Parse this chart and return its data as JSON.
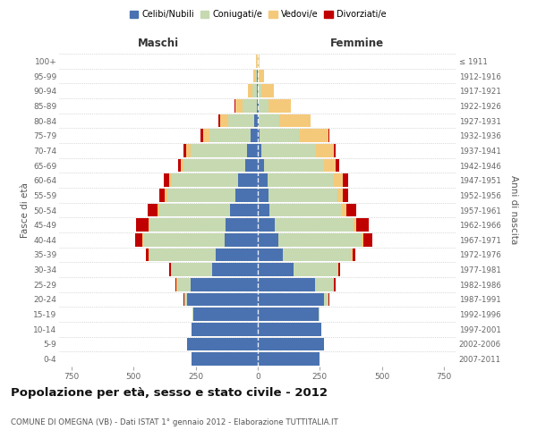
{
  "age_groups": [
    "0-4",
    "5-9",
    "10-14",
    "15-19",
    "20-24",
    "25-29",
    "30-34",
    "35-39",
    "40-44",
    "45-49",
    "50-54",
    "55-59",
    "60-64",
    "65-69",
    "70-74",
    "75-79",
    "80-84",
    "85-89",
    "90-94",
    "95-99",
    "100+"
  ],
  "birth_years": [
    "2007-2011",
    "2002-2006",
    "1997-2001",
    "1992-1996",
    "1987-1991",
    "1982-1986",
    "1977-1981",
    "1972-1976",
    "1967-1971",
    "1962-1966",
    "1957-1961",
    "1952-1956",
    "1947-1951",
    "1942-1946",
    "1937-1941",
    "1932-1936",
    "1927-1931",
    "1922-1926",
    "1917-1921",
    "1912-1916",
    "≤ 1911"
  ],
  "males": {
    "celibi": [
      265,
      285,
      265,
      260,
      285,
      270,
      185,
      170,
      135,
      130,
      110,
      90,
      80,
      50,
      45,
      28,
      13,
      5,
      2,
      2,
      1
    ],
    "coniugati": [
      0,
      0,
      0,
      3,
      12,
      55,
      160,
      265,
      325,
      305,
      285,
      275,
      265,
      248,
      225,
      168,
      105,
      55,
      18,
      7,
      2
    ],
    "vedovi": [
      0,
      0,
      0,
      0,
      0,
      2,
      3,
      3,
      5,
      5,
      8,
      8,
      12,
      12,
      18,
      25,
      35,
      30,
      18,
      8,
      3
    ],
    "divorziati": [
      0,
      0,
      0,
      0,
      2,
      5,
      8,
      12,
      28,
      50,
      42,
      22,
      22,
      12,
      12,
      8,
      4,
      2,
      1,
      0,
      0
    ]
  },
  "females": {
    "nubili": [
      250,
      265,
      255,
      245,
      265,
      230,
      145,
      100,
      82,
      68,
      48,
      42,
      38,
      25,
      16,
      8,
      4,
      2,
      1,
      1,
      0
    ],
    "coniugate": [
      0,
      0,
      0,
      5,
      18,
      75,
      175,
      275,
      335,
      318,
      292,
      278,
      268,
      240,
      218,
      162,
      82,
      40,
      13,
      4,
      2
    ],
    "vedove": [
      0,
      0,
      0,
      0,
      2,
      3,
      4,
      6,
      8,
      12,
      18,
      22,
      35,
      50,
      72,
      115,
      125,
      90,
      52,
      22,
      7
    ],
    "divorziate": [
      0,
      0,
      0,
      0,
      2,
      4,
      8,
      12,
      38,
      48,
      38,
      22,
      22,
      12,
      8,
      4,
      2,
      1,
      0,
      0,
      0
    ]
  },
  "colors": {
    "celibi": "#4a72b0",
    "coniugati": "#c6d9b0",
    "vedovi": "#f5c97a",
    "divorziati": "#c00000"
  },
  "xlim": 800,
  "title": "Popolazione per età, sesso e stato civile - 2012",
  "subtitle": "COMUNE DI OMEGNA (VB) - Dati ISTAT 1° gennaio 2012 - Elaborazione TUTTITALIA.IT",
  "xlabel_left": "Maschi",
  "xlabel_right": "Femmine",
  "ylabel_left": "Fasce di età",
  "ylabel_right": "Anni di nascita",
  "background_color": "#ffffff",
  "grid_color": "#bbbbbb"
}
